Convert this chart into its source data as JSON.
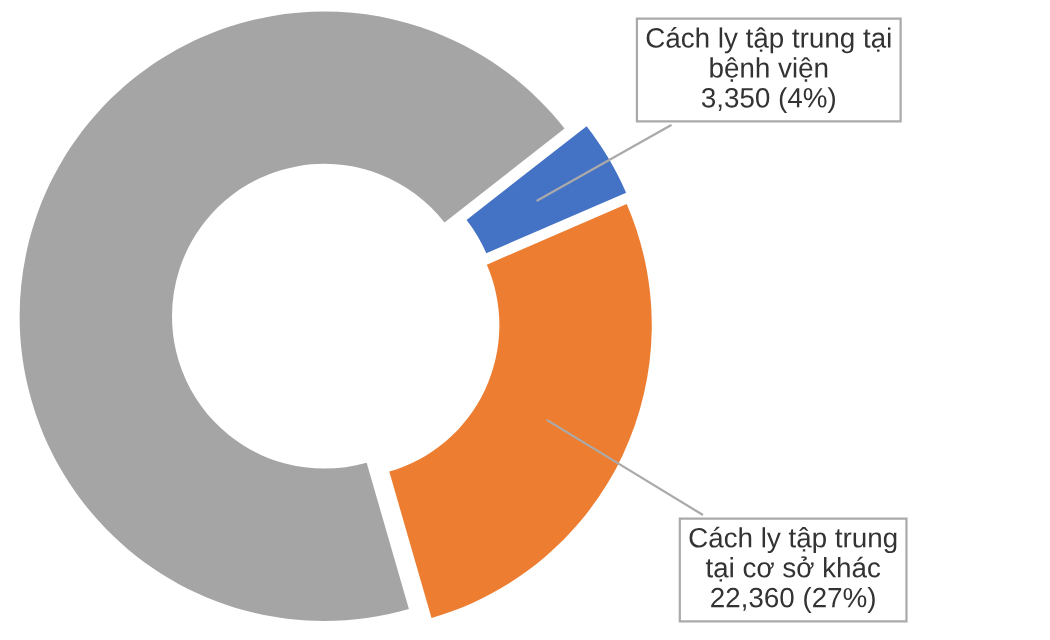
{
  "chart_data": {
    "type": "donut",
    "categories": [
      "Cách ly tập trung tại bệnh viện",
      "Cách ly tập trung tại cơ sở khác",
      null
    ],
    "values": [
      3350,
      22360,
      57000
    ],
    "value_labels": [
      "3,350 (4%)",
      "22,360 (27%)",
      null
    ],
    "colors": [
      "#4472c4",
      "#ed7d31",
      "#a5a5a5"
    ],
    "legend": false
  }
}
